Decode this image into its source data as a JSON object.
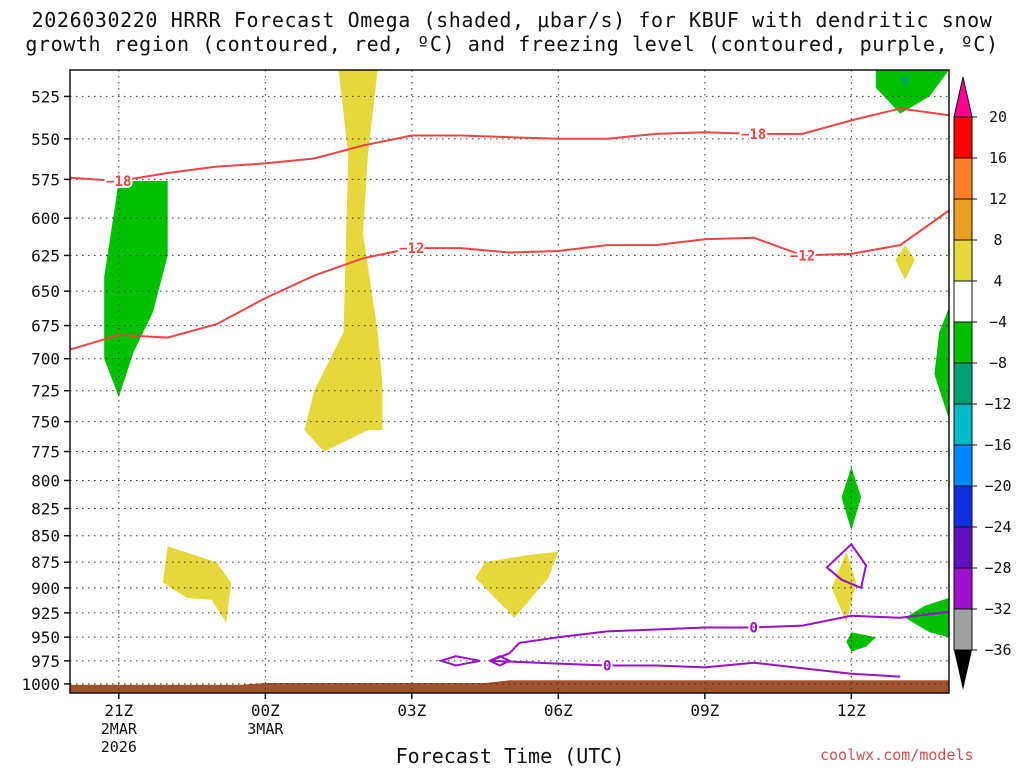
{
  "chart_data": {
    "type": "heatmap",
    "title_line1": "2026030220 HRRR Forecast Omega (shaded, μbar/s) for KBUF with dendritic snow",
    "title_line2": "growth region (contoured, red, ºC) and freezing level (contoured, purple, ºC)",
    "xlabel": "Forecast Time (UTC)",
    "ylabel": "",
    "credit": "coolwx.com/models",
    "y_axis": {
      "ticks": [
        525,
        550,
        575,
        600,
        625,
        650,
        675,
        700,
        725,
        750,
        775,
        800,
        825,
        850,
        875,
        900,
        925,
        950,
        975,
        1000
      ],
      "range": [
        510,
        1010
      ],
      "units": "hPa"
    },
    "x_axis": {
      "ticks": [
        {
          "label": "21Z",
          "sub1": "2MAR",
          "sub2": "2026",
          "hour": 21
        },
        {
          "label": "00Z",
          "sub1": "3MAR",
          "sub2": "",
          "hour": 24
        },
        {
          "label": "03Z",
          "sub1": "",
          "sub2": "",
          "hour": 27
        },
        {
          "label": "06Z",
          "sub1": "",
          "sub2": "",
          "hour": 30
        },
        {
          "label": "09Z",
          "sub1": "",
          "sub2": "",
          "hour": 33
        },
        {
          "label": "12Z",
          "sub1": "",
          "sub2": "",
          "hour": 36
        }
      ],
      "range": [
        20,
        38
      ]
    },
    "colorbar": {
      "labels": [
        "20",
        "16",
        "12",
        "8",
        "4",
        "−4",
        "−8",
        "−12",
        "−16",
        "−20",
        "−24",
        "−28",
        "−32",
        "−36"
      ],
      "colors": [
        "#e8e8e8",
        "#ff0000",
        "#ff7f27",
        "#e8a020",
        "#e6d83c",
        "#ffffff",
        "#00c000",
        "#00a070",
        "#00b8c8",
        "#0088ff",
        "#1030e0",
        "#6010c0",
        "#a010d0",
        "#a0a0a0"
      ],
      "top_arrow_color": "#ff0090",
      "bottom_arrow_color": "#000000"
    },
    "contours": [
      {
        "name": "-18",
        "color": "#ee4444",
        "label": "−18",
        "points": [
          [
            20,
            574
          ],
          [
            21,
            576
          ],
          [
            22,
            571
          ],
          [
            23,
            567
          ],
          [
            24,
            565
          ],
          [
            25,
            562
          ],
          [
            25.5,
            558
          ],
          [
            26,
            554
          ],
          [
            27,
            548
          ],
          [
            28,
            548
          ],
          [
            29,
            549
          ],
          [
            30,
            550
          ],
          [
            31,
            550
          ],
          [
            32,
            547
          ],
          [
            33,
            546
          ],
          [
            34,
            547
          ],
          [
            35,
            547
          ],
          [
            36,
            539
          ],
          [
            37,
            532
          ],
          [
            38,
            536
          ]
        ]
      },
      {
        "name": "-12",
        "color": "#ee4444",
        "label": "−12",
        "points": [
          [
            20,
            693
          ],
          [
            21,
            682
          ],
          [
            22,
            684
          ],
          [
            23,
            674
          ],
          [
            24,
            655
          ],
          [
            25,
            639
          ],
          [
            26,
            627
          ],
          [
            27,
            620
          ],
          [
            28,
            620
          ],
          [
            29,
            623
          ],
          [
            30,
            622
          ],
          [
            31,
            618
          ],
          [
            32,
            618
          ],
          [
            33,
            614
          ],
          [
            34,
            613
          ],
          [
            35,
            625
          ],
          [
            36,
            624
          ],
          [
            37,
            618
          ],
          [
            38,
            595
          ]
        ]
      },
      {
        "name": "0-upper",
        "color": "#9a10c8",
        "label": "0",
        "points": [
          [
            28.6,
            975
          ],
          [
            29,
            967
          ],
          [
            29.2,
            956
          ],
          [
            30,
            950
          ],
          [
            31,
            944
          ],
          [
            32,
            942
          ],
          [
            33,
            940
          ],
          [
            34,
            940
          ],
          [
            35,
            938
          ],
          [
            36,
            928
          ],
          [
            37,
            930
          ],
          [
            38,
            924
          ]
        ]
      },
      {
        "name": "0-lower",
        "color": "#9a10c8",
        "label": "0",
        "points": [
          [
            28.6,
            975
          ],
          [
            30,
            978
          ],
          [
            31,
            980
          ],
          [
            32,
            980
          ],
          [
            33,
            982
          ],
          [
            34,
            977
          ],
          [
            35,
            983
          ],
          [
            36,
            989
          ],
          [
            37,
            992
          ]
        ]
      }
    ],
    "shaded_regions": [
      {
        "name": "green-upper-left",
        "color": "#00c000",
        "value_range": "-8 to -4"
      },
      {
        "name": "yellow-vertical-column",
        "color": "#e6d83c",
        "value_range": "4 to 8"
      },
      {
        "name": "yellow-low-left",
        "color": "#e6d83c",
        "value_range": "4 to 8"
      },
      {
        "name": "yellow-low-mid",
        "color": "#e6d83c",
        "value_range": "4 to 8"
      },
      {
        "name": "yellow-right-small",
        "color": "#e6d83c",
        "value_range": "4 to 8"
      },
      {
        "name": "yellow-right-low",
        "color": "#e6d83c",
        "value_range": "4 to 8"
      },
      {
        "name": "green-right-upper",
        "color": "#00c000",
        "value_range": "-8 to -4"
      },
      {
        "name": "green-right-mid",
        "color": "#00c000",
        "value_range": "-8 to -4"
      },
      {
        "name": "green-right-low",
        "color": "#00c000",
        "value_range": "-8 to -4"
      },
      {
        "name": "green-right-edge",
        "color": "#00c000",
        "value_range": "-8 to -4"
      },
      {
        "name": "green-right-bottom",
        "color": "#00c000",
        "value_range": "-8 to -4"
      },
      {
        "name": "terrain",
        "color": "#a0522d",
        "value_range": "below ground"
      }
    ]
  }
}
